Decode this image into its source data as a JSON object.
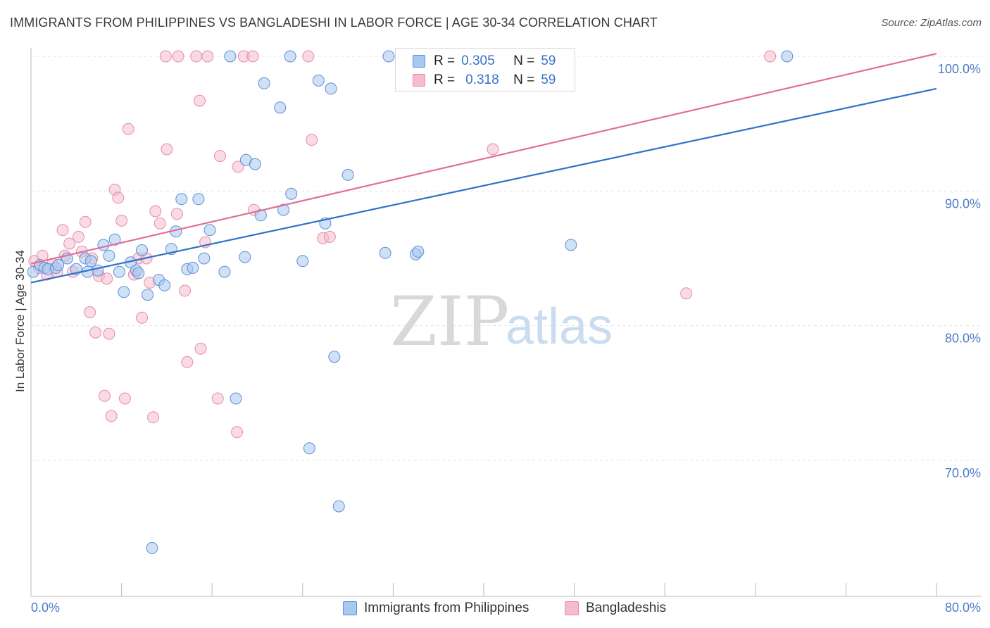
{
  "title": "IMMIGRANTS FROM PHILIPPINES VS BANGLADESHI IN LABOR FORCE | AGE 30-34 CORRELATION CHART",
  "source": "Source: ZipAtlas.com",
  "watermark": {
    "zip": "ZIP",
    "atlas": "atlas"
  },
  "colors": {
    "blue_fill": "#a9c8ef",
    "blue_stroke": "#5a8fd8",
    "blue_line": "#2f72c9",
    "pink_fill": "#f6bccd",
    "pink_stroke": "#e88ba8",
    "pink_line": "#e06f97",
    "tick_text": "#4a7cc7",
    "grid": "#e3e3e3"
  },
  "legend": {
    "rows": [
      {
        "r_label": "R =",
        "r_value": "0.305",
        "n_label": "N =",
        "n_value": "59",
        "series": "blue"
      },
      {
        "r_label": "R =",
        "r_value": "0.318",
        "n_label": "N =",
        "n_value": "59",
        "series": "pink"
      }
    ]
  },
  "bottom_legend": {
    "items": [
      {
        "label": "Immigrants from Philippines",
        "series": "blue"
      },
      {
        "label": "Bangladeshis",
        "series": "pink"
      }
    ]
  },
  "chart_data": {
    "type": "scatter",
    "title": "IMMIGRANTS FROM PHILIPPINES VS BANGLADESHI IN LABOR FORCE | AGE 30-34 CORRELATION CHART",
    "xlabel": "",
    "ylabel": "In Labor Force | Age 30-34",
    "xlim": [
      0,
      80
    ],
    "ylim": [
      60,
      100
    ],
    "x_tick_labels": [
      {
        "value": 0,
        "label": "0.0%"
      },
      {
        "value": 80,
        "label": "80.0%"
      }
    ],
    "x_minor_ticks": [
      8,
      16,
      24,
      32,
      40,
      48,
      56,
      64,
      72,
      80
    ],
    "y_ticks": [
      {
        "value": 100,
        "label": "100.0%"
      },
      {
        "value": 90,
        "label": "90.0%"
      },
      {
        "value": 80,
        "label": "80.0%"
      },
      {
        "value": 70,
        "label": "70.0%"
      }
    ],
    "grid": true,
    "legend_position": "top-center",
    "series": [
      {
        "name": "Immigrants from Philippines",
        "color": "blue",
        "trend": {
          "x": [
            0,
            80
          ],
          "y": [
            83.2,
            97.6
          ]
        },
        "points": [
          [
            0.2,
            84.0
          ],
          [
            0.8,
            84.5
          ],
          [
            1.2,
            84.3
          ],
          [
            1.5,
            84.2
          ],
          [
            2.2,
            84.3
          ],
          [
            3.2,
            85.0
          ],
          [
            4.0,
            84.2
          ],
          [
            4.8,
            85.0
          ],
          [
            5.3,
            84.8
          ],
          [
            5.9,
            84.1
          ],
          [
            6.4,
            86.0
          ],
          [
            6.9,
            85.2
          ],
          [
            7.4,
            86.4
          ],
          [
            7.8,
            84.0
          ],
          [
            8.2,
            82.5
          ],
          [
            8.8,
            84.7
          ],
          [
            9.3,
            84.1
          ],
          [
            9.8,
            85.6
          ],
          [
            10.3,
            82.3
          ],
          [
            10.7,
            63.5
          ],
          [
            11.3,
            83.4
          ],
          [
            11.8,
            83.0
          ],
          [
            12.4,
            85.7
          ],
          [
            12.8,
            87.0
          ],
          [
            13.3,
            89.4
          ],
          [
            13.8,
            84.2
          ],
          [
            14.3,
            84.3
          ],
          [
            14.8,
            89.4
          ],
          [
            15.3,
            85.0
          ],
          [
            15.8,
            87.1
          ],
          [
            17.1,
            84.0
          ],
          [
            18.1,
            74.6
          ],
          [
            18.9,
            85.1
          ],
          [
            19.0,
            92.3
          ],
          [
            19.8,
            92.0
          ],
          [
            20.3,
            88.2
          ],
          [
            20.6,
            98.0
          ],
          [
            22.0,
            96.2
          ],
          [
            22.3,
            88.6
          ],
          [
            23.0,
            89.8
          ],
          [
            24.0,
            84.8
          ],
          [
            24.6,
            70.9
          ],
          [
            25.4,
            98.2
          ],
          [
            26.0,
            87.6
          ],
          [
            26.5,
            97.6
          ],
          [
            26.8,
            77.7
          ],
          [
            27.2,
            66.6
          ],
          [
            28.0,
            91.2
          ],
          [
            31.3,
            85.4
          ],
          [
            34.0,
            85.3
          ],
          [
            34.2,
            85.5
          ],
          [
            47.7,
            86.0
          ],
          [
            17.6,
            100.0
          ],
          [
            22.9,
            100.0
          ],
          [
            31.6,
            100.0
          ],
          [
            66.8,
            100.0
          ],
          [
            2.4,
            84.5
          ],
          [
            5.0,
            84.0
          ],
          [
            9.5,
            83.9
          ]
        ]
      },
      {
        "name": "Bangladeshis",
        "color": "pink",
        "trend": {
          "x": [
            0,
            80
          ],
          "y": [
            84.6,
            100.2
          ]
        },
        "points": [
          [
            0.3,
            84.8
          ],
          [
            0.7,
            84.3
          ],
          [
            1.0,
            85.2
          ],
          [
            1.4,
            83.8
          ],
          [
            1.9,
            84.6
          ],
          [
            2.3,
            84.0
          ],
          [
            2.8,
            87.1
          ],
          [
            3.0,
            85.2
          ],
          [
            3.4,
            86.1
          ],
          [
            3.7,
            84.0
          ],
          [
            4.2,
            86.6
          ],
          [
            4.5,
            85.5
          ],
          [
            4.8,
            87.7
          ],
          [
            5.2,
            81.0
          ],
          [
            5.4,
            85.0
          ],
          [
            5.7,
            79.5
          ],
          [
            6.0,
            83.7
          ],
          [
            6.5,
            74.8
          ],
          [
            6.7,
            83.5
          ],
          [
            6.9,
            79.4
          ],
          [
            7.1,
            73.3
          ],
          [
            7.4,
            90.1
          ],
          [
            7.7,
            89.5
          ],
          [
            8.0,
            87.8
          ],
          [
            8.3,
            74.6
          ],
          [
            8.6,
            94.6
          ],
          [
            9.1,
            83.8
          ],
          [
            9.5,
            85.0
          ],
          [
            9.8,
            80.6
          ],
          [
            10.2,
            85.0
          ],
          [
            10.5,
            83.2
          ],
          [
            10.8,
            73.2
          ],
          [
            11.0,
            88.5
          ],
          [
            11.4,
            87.6
          ],
          [
            12.0,
            93.1
          ],
          [
            12.9,
            88.3
          ],
          [
            13.6,
            82.6
          ],
          [
            13.8,
            77.3
          ],
          [
            14.9,
            96.7
          ],
          [
            15.0,
            78.3
          ],
          [
            15.4,
            86.2
          ],
          [
            16.5,
            74.6
          ],
          [
            16.7,
            92.6
          ],
          [
            18.2,
            72.1
          ],
          [
            18.3,
            91.8
          ],
          [
            19.7,
            88.6
          ],
          [
            24.8,
            93.8
          ],
          [
            25.8,
            86.5
          ],
          [
            26.4,
            86.6
          ],
          [
            40.8,
            93.1
          ],
          [
            57.9,
            82.4
          ],
          [
            11.9,
            100.0
          ],
          [
            13.0,
            100.0
          ],
          [
            14.6,
            100.0
          ],
          [
            15.6,
            100.0
          ],
          [
            18.8,
            100.0
          ],
          [
            19.6,
            100.0
          ],
          [
            24.5,
            100.0
          ],
          [
            65.3,
            100.0
          ]
        ]
      }
    ]
  }
}
